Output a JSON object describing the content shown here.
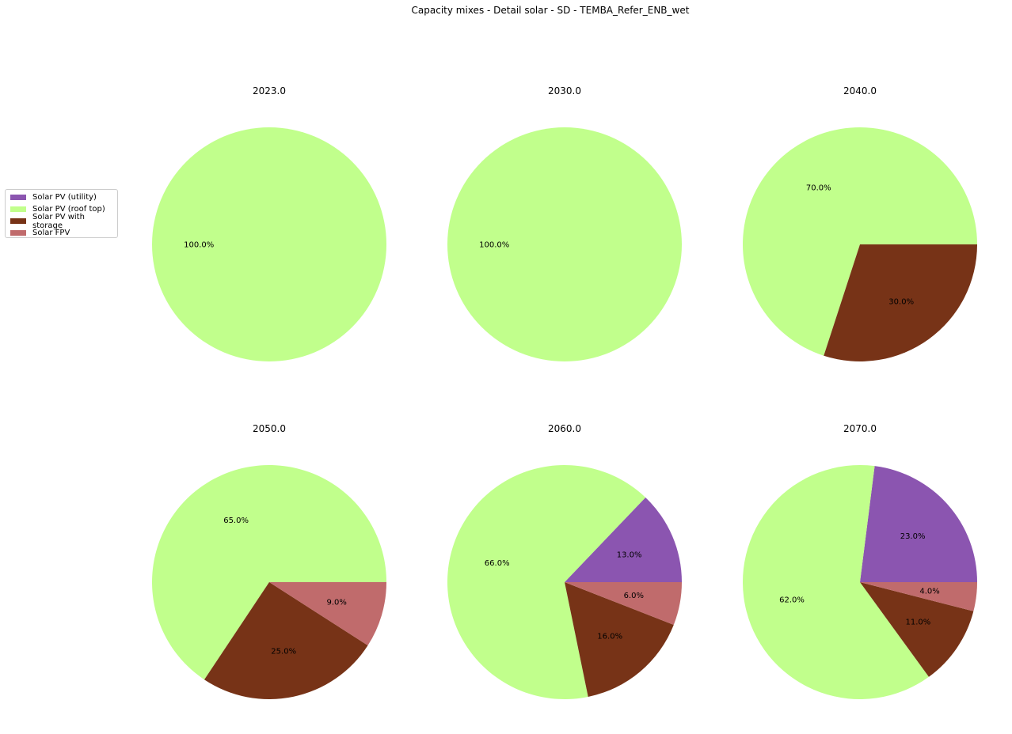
{
  "figure_title": "Capacity mixes - Detail solar - SD - TEMBA_Refer_ENB_wet",
  "colors": {
    "Solar PV (utility)": "#8b55b0",
    "Solar PV (roof top)": "#c1ff8c",
    "Solar PV with storage": "#773317",
    "Solar FPV": "#c06b6c"
  },
  "legend": {
    "items": [
      {
        "label": "Solar PV (utility)",
        "color": "#8b55b0"
      },
      {
        "label": "Solar PV (roof top)",
        "color": "#c1ff8c"
      },
      {
        "label": "Solar PV with storage",
        "color": "#773317"
      },
      {
        "label": "Solar FPV",
        "color": "#c06b6c"
      }
    ]
  },
  "chart_data": [
    {
      "type": "pie",
      "title": "2023.0",
      "categories": [
        "Solar PV (utility)",
        "Solar PV (roof top)",
        "Solar PV with storage",
        "Solar FPV"
      ],
      "values": [
        0,
        100,
        0,
        0
      ],
      "labels": [
        "",
        "100.0%",
        "",
        ""
      ]
    },
    {
      "type": "pie",
      "title": "2030.0",
      "categories": [
        "Solar PV (utility)",
        "Solar PV (roof top)",
        "Solar PV with storage",
        "Solar FPV"
      ],
      "values": [
        0,
        100,
        0,
        0
      ],
      "labels": [
        "",
        "100.0%",
        "",
        ""
      ]
    },
    {
      "type": "pie",
      "title": "2040.0",
      "categories": [
        "Solar PV (utility)",
        "Solar PV (roof top)",
        "Solar PV with storage",
        "Solar FPV"
      ],
      "values": [
        0,
        70,
        30,
        0
      ],
      "labels": [
        "",
        "70.0%",
        "30.0%",
        ""
      ]
    },
    {
      "type": "pie",
      "title": "2050.0",
      "categories": [
        "Solar PV (utility)",
        "Solar PV (roof top)",
        "Solar PV with storage",
        "Solar FPV"
      ],
      "values": [
        0,
        65,
        25,
        9
      ],
      "labels": [
        "",
        "65.0%",
        "25.0%",
        "9.0%"
      ]
    },
    {
      "type": "pie",
      "title": "2060.0",
      "categories": [
        "Solar PV (utility)",
        "Solar PV (roof top)",
        "Solar PV with storage",
        "Solar FPV"
      ],
      "values": [
        13,
        66,
        16,
        6
      ],
      "labels": [
        "13.0%",
        "66.0%",
        "16.0%",
        "6.0%"
      ]
    },
    {
      "type": "pie",
      "title": "2070.0",
      "categories": [
        "Solar PV (utility)",
        "Solar PV (roof top)",
        "Solar PV with storage",
        "Solar FPV"
      ],
      "values": [
        23,
        62,
        11,
        4
      ],
      "labels": [
        "23.0%",
        "62.0%",
        "11.0%",
        "4.0%"
      ]
    }
  ]
}
